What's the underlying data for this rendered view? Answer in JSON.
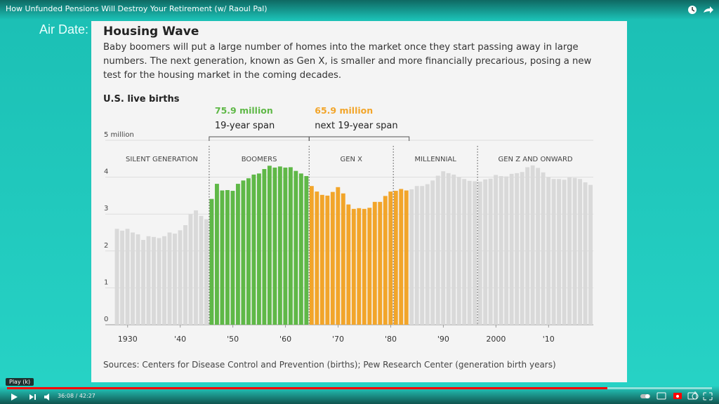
{
  "video": {
    "title": "How Unfunded Pensions Will Destroy Your Retirement (w/ Raoul Pal)",
    "air_date": "Air Date:",
    "tooltip": "Play (k)",
    "time": "36:08 / 42:27"
  },
  "chart_data": {
    "type": "bar",
    "title": "Housing Wave",
    "subtitle": "Baby boomers will put a large number of homes into the market once they start passing away in large numbers. The next generation, known as Gen X, is smaller and more financially precarious, posing a new test for the housing market in the coming decades.",
    "ylabel": "U.S. live births",
    "source": "Sources: Centers for Disease Control and Prevention (births); Pew Research Center (generation birth years)",
    "x": [
      1928,
      1929,
      1930,
      1931,
      1932,
      1933,
      1934,
      1935,
      1936,
      1937,
      1938,
      1939,
      1940,
      1941,
      1942,
      1943,
      1944,
      1945,
      1946,
      1947,
      1948,
      1949,
      1950,
      1951,
      1952,
      1953,
      1954,
      1955,
      1956,
      1957,
      1958,
      1959,
      1960,
      1961,
      1962,
      1963,
      1964,
      1965,
      1966,
      1967,
      1968,
      1969,
      1970,
      1971,
      1972,
      1973,
      1974,
      1975,
      1976,
      1977,
      1978,
      1979,
      1980,
      1981,
      1982,
      1983,
      1984,
      1985,
      1986,
      1987,
      1988,
      1989,
      1990,
      1991,
      1992,
      1993,
      1994,
      1995,
      1996,
      1997,
      1998,
      1999,
      2000,
      2001,
      2002,
      2003,
      2004,
      2005,
      2006,
      2007,
      2008,
      2009,
      2010,
      2011,
      2012,
      2013,
      2014,
      2015,
      2016,
      2017,
      2018
    ],
    "values": [
      2.6,
      2.55,
      2.6,
      2.5,
      2.45,
      2.3,
      2.4,
      2.38,
      2.35,
      2.4,
      2.5,
      2.47,
      2.56,
      2.7,
      3.0,
      3.1,
      2.95,
      2.86,
      3.41,
      3.82,
      3.64,
      3.65,
      3.63,
      3.82,
      3.91,
      3.97,
      4.07,
      4.1,
      4.22,
      4.31,
      4.26,
      4.29,
      4.26,
      4.27,
      4.17,
      4.1,
      4.03,
      3.76,
      3.61,
      3.52,
      3.5,
      3.6,
      3.73,
      3.56,
      3.26,
      3.14,
      3.16,
      3.14,
      3.17,
      3.33,
      3.33,
      3.49,
      3.61,
      3.63,
      3.68,
      3.64,
      3.67,
      3.76,
      3.76,
      3.81,
      3.91,
      4.04,
      4.16,
      4.11,
      4.07,
      4.0,
      3.95,
      3.9,
      3.89,
      3.88,
      3.94,
      3.96,
      4.06,
      4.03,
      4.02,
      4.09,
      4.11,
      4.14,
      4.27,
      4.32,
      4.25,
      4.13,
      4.0,
      3.95,
      3.95,
      3.93,
      3.99,
      3.98,
      3.95,
      3.86,
      3.79
    ],
    "color": "#d9d9d9",
    "highlights": [
      {
        "start": 1946,
        "end": 1964,
        "color": "#5fb847",
        "total": "75.9 million",
        "span": "19-year span"
      },
      {
        "start": 1965,
        "end": 1983,
        "color": "#f2a52a",
        "total": "65.9 million",
        "span": "next 19-year span"
      }
    ],
    "generations": [
      {
        "label": "SILENT GENERATION",
        "start": 1928
      },
      {
        "label": "BOOMERS",
        "start": 1946
      },
      {
        "label": "GEN X",
        "start": 1965
      },
      {
        "label": "MILLENNIAL",
        "start": 1981
      },
      {
        "label": "GEN Z AND ONWARD",
        "start": 1997
      }
    ],
    "xlim": [
      1928,
      2019
    ],
    "xticks": [
      1930,
      {
        "value": 1940,
        "label": "'40"
      },
      {
        "value": 1950,
        "label": "'50"
      },
      {
        "value": 1960,
        "label": "'60"
      },
      {
        "value": 1970,
        "label": "'70"
      },
      {
        "value": 1980,
        "label": "'80"
      },
      {
        "value": 1990,
        "label": "'90"
      },
      2000,
      {
        "value": 2010,
        "label": "'10"
      }
    ],
    "ylim": [
      0,
      5
    ],
    "yticks": [
      0,
      1,
      2,
      3,
      4,
      {
        "value": 5,
        "label": "5 million"
      }
    ],
    "grid": true
  }
}
